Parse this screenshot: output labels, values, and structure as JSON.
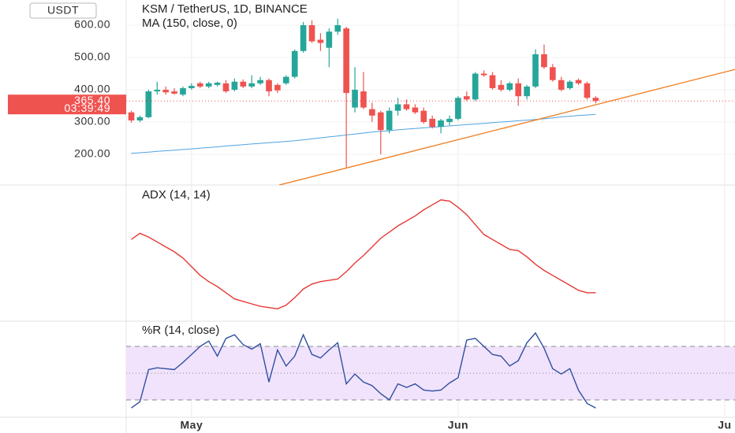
{
  "chart_data": [
    {
      "type": "candlestick",
      "title": "KSM / TetherUS, 1D, BINANCE",
      "currency": "USDT",
      "ylim": [
        105,
        678
      ],
      "yticks": [
        {
          "value": 200,
          "label": "200.00"
        },
        {
          "value": 300,
          "label": "300.00"
        },
        {
          "value": 400,
          "label": "400.00"
        },
        {
          "value": 500,
          "label": "500.00"
        },
        {
          "value": 600,
          "label": "600.00"
        }
      ],
      "xlim": [
        -0.6,
        70.2
      ],
      "xticks": [
        {
          "value": 7,
          "label": "May"
        },
        {
          "value": 38,
          "label": "Jun"
        },
        {
          "value": 69,
          "label": "Ju"
        }
      ],
      "up_color": "#26a69a",
      "down_color": "#ef5350",
      "open": [
        330,
        305,
        315,
        395,
        400,
        395,
        385,
        405,
        420,
        410,
        415,
        420,
        400,
        425,
        410,
        420,
        430,
        415,
        420,
        440,
        520,
        600,
        555,
        530,
        580,
        590,
        345,
        395,
        340,
        330,
        275,
        335,
        355,
        345,
        335,
        310,
        285,
        300,
        310,
        380,
        370,
        450,
        445,
        415,
        400,
        420,
        380,
        410,
        510,
        470,
        430,
        405,
        430,
        420,
        375
      ],
      "high": [
        335,
        320,
        400,
        425,
        410,
        405,
        410,
        420,
        425,
        425,
        425,
        430,
        435,
        432,
        445,
        440,
        435,
        420,
        445,
        525,
        610,
        615,
        575,
        590,
        620,
        595,
        470,
        455,
        360,
        335,
        345,
        375,
        370,
        355,
        345,
        320,
        310,
        320,
        380,
        395,
        455,
        460,
        455,
        430,
        425,
        435,
        415,
        525,
        540,
        480,
        440,
        430,
        435,
        425,
        380
      ],
      "low": [
        298,
        300,
        312,
        385,
        385,
        385,
        380,
        400,
        405,
        405,
        410,
        390,
        395,
        405,
        405,
        415,
        380,
        390,
        415,
        435,
        515,
        545,
        520,
        470,
        570,
        160,
        330,
        340,
        300,
        200,
        265,
        320,
        335,
        325,
        295,
        280,
        265,
        290,
        305,
        365,
        365,
        440,
        400,
        395,
        395,
        350,
        370,
        405,
        465,
        425,
        395,
        400,
        415,
        370,
        358
      ],
      "close": [
        305,
        315,
        395,
        400,
        392,
        388,
        405,
        412,
        410,
        420,
        422,
        395,
        425,
        410,
        420,
        430,
        395,
        398,
        440,
        520,
        600,
        550,
        545,
        580,
        600,
        390,
        400,
        345,
        320,
        275,
        335,
        355,
        340,
        330,
        300,
        285,
        305,
        310,
        375,
        370,
        450,
        445,
        405,
        400,
        420,
        380,
        410,
        510,
        470,
        430,
        400,
        425,
        420,
        375,
        365.4
      ],
      "series": [
        {
          "name": "MA (150, close, 0)",
          "color": "#4ea3e0",
          "values": [
            203,
            205,
            207,
            209,
            211,
            213,
            215,
            217,
            219,
            221,
            223,
            226,
            228,
            230,
            232,
            234,
            236,
            238,
            240,
            242,
            245,
            248,
            251,
            254,
            257,
            260,
            263,
            266,
            269,
            271,
            273,
            276,
            278,
            280,
            282,
            284,
            286,
            288,
            290,
            292,
            294,
            296,
            298,
            300,
            302,
            304,
            306,
            308,
            310,
            313,
            316,
            318,
            320,
            322,
            324
          ]
        }
      ],
      "trendline": {
        "color": "#ef7a1a",
        "x": [
          17.2,
          70.2
        ],
        "values": [
          105,
          463
        ]
      },
      "last_price": {
        "value": 365.4,
        "label": "365.40"
      },
      "countdown": "03:39:49"
    },
    {
      "type": "line",
      "ylim": [
        5,
        60
      ],
      "series": [
        {
          "name": "ADX (14, 14)",
          "color": "#e53935",
          "values": [
            38,
            40.5,
            39,
            37,
            35,
            33,
            30.5,
            27,
            23.5,
            21,
            19,
            16.5,
            14,
            13,
            12,
            11,
            10.5,
            10,
            11.5,
            14.5,
            18,
            20,
            21,
            21.5,
            22,
            25,
            28.5,
            31.5,
            35,
            38.5,
            41,
            43.5,
            45.5,
            47.5,
            50,
            52,
            54,
            53.5,
            51,
            48,
            44,
            40,
            38,
            36,
            34,
            33.5,
            31,
            28,
            25.5,
            23.5,
            21.5,
            19.5,
            17.5,
            16.5,
            16.5
          ]
        }
      ]
    },
    {
      "type": "line",
      "ylim": [
        -99.4,
        8.2
      ],
      "bands": {
        "upper": -20,
        "middle": -50,
        "lower": -80,
        "color": "#f1e3fc"
      },
      "series": [
        {
          "name": "%R (14, close)",
          "color": "#2f4f9f",
          "values": [
            -89,
            -82,
            -46,
            -44,
            -45,
            -46,
            -38,
            -29,
            -20,
            -14,
            -31,
            -11,
            -7,
            -18,
            -23,
            -17,
            -60,
            -24,
            -42,
            -31,
            -7,
            -29,
            -33,
            -24,
            -16,
            -62,
            -51,
            -60,
            -64,
            -73,
            -80,
            -62,
            -66,
            -62,
            -69,
            -70,
            -69,
            -61,
            -55,
            -13,
            -11,
            -20,
            -29,
            -31,
            -42,
            -36,
            -16,
            -5,
            -22,
            -45,
            -51,
            -45,
            -69,
            -84,
            -89
          ]
        }
      ]
    }
  ]
}
